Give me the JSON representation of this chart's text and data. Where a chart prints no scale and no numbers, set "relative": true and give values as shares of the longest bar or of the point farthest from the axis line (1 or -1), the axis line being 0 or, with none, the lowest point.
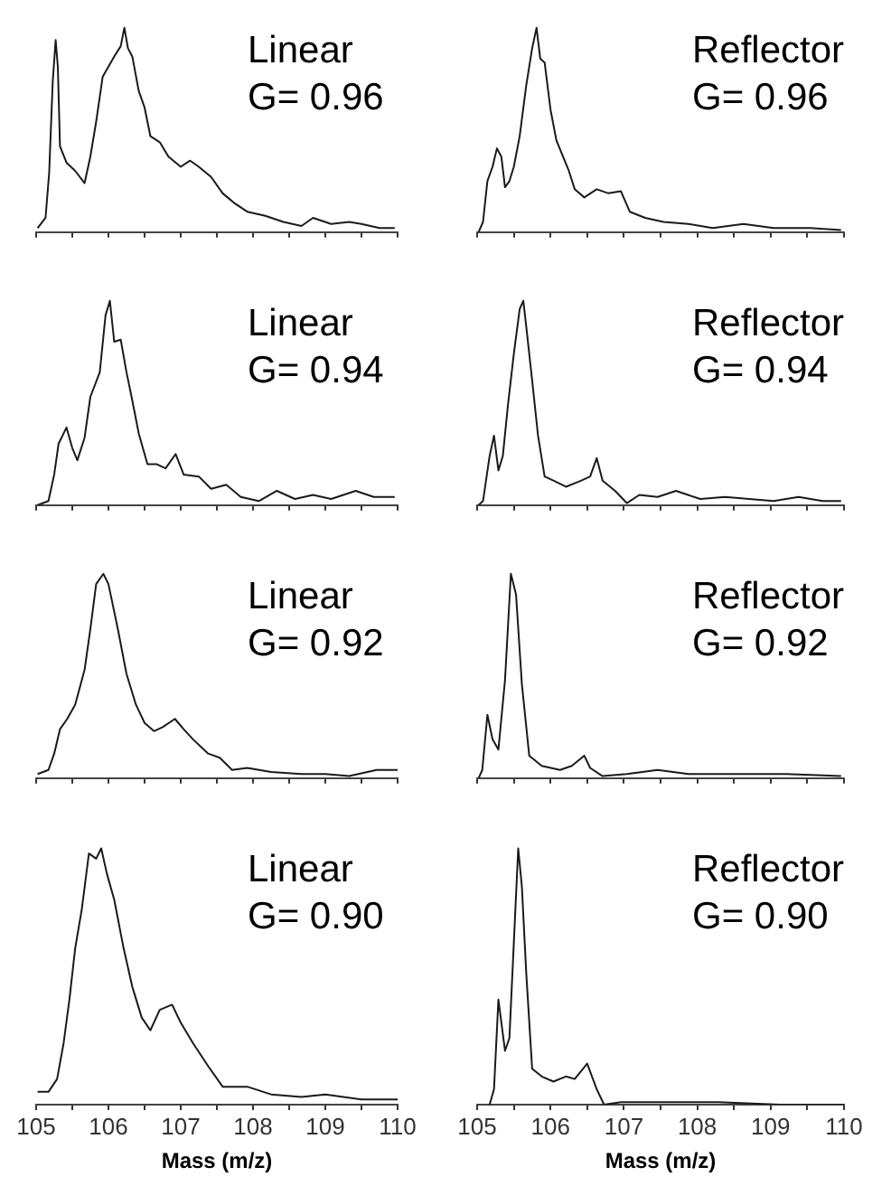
{
  "chart_data": [
    {
      "type": "line",
      "relative": true,
      "annotations": [
        "Linear",
        "G= 0.96"
      ],
      "tick_labels": false,
      "xlim": [
        105,
        110
      ],
      "xticks": [
        105,
        {
          "value": 105.5,
          "label": null
        },
        106,
        {
          "value": 106.5,
          "label": null
        },
        107,
        {
          "value": 107.5,
          "label": null
        },
        108,
        {
          "value": 108.5,
          "label": null
        },
        109,
        {
          "value": 109.5,
          "label": null
        },
        110
      ],
      "x": [
        105.02,
        105.13,
        105.18,
        105.23,
        105.27,
        105.3,
        105.33,
        105.42,
        105.54,
        105.67,
        105.75,
        105.83,
        105.92,
        106.0,
        106.08,
        106.17,
        106.22,
        106.27,
        106.33,
        106.42,
        106.5,
        106.58,
        106.71,
        106.83,
        107.0,
        107.13,
        107.25,
        107.42,
        107.58,
        107.75,
        107.92,
        108.17,
        108.42,
        108.67,
        108.83,
        109.08,
        109.33,
        109.5,
        109.75,
        109.96
      ],
      "series": [
        {
          "color": "#1a1a1a",
          "values": [
            0.02,
            0.07,
            0.29,
            0.74,
            0.94,
            0.81,
            0.42,
            0.34,
            0.3,
            0.24,
            0.37,
            0.54,
            0.76,
            0.81,
            0.86,
            0.91,
            1.0,
            0.9,
            0.86,
            0.69,
            0.61,
            0.47,
            0.44,
            0.37,
            0.32,
            0.35,
            0.32,
            0.27,
            0.19,
            0.14,
            0.1,
            0.08,
            0.05,
            0.03,
            0.07,
            0.04,
            0.05,
            0.04,
            0.02,
            0.02
          ]
        }
      ]
    },
    {
      "type": "line",
      "relative": true,
      "annotations": [
        "Reflector",
        "G= 0.96"
      ],
      "tick_labels": false,
      "xlim": [
        105,
        110
      ],
      "xticks": [
        105,
        {
          "value": 105.5,
          "label": null
        },
        106,
        {
          "value": 106.5,
          "label": null
        },
        107,
        {
          "value": 107.5,
          "label": null
        },
        108,
        {
          "value": 108.5,
          "label": null
        },
        109,
        {
          "value": 109.5,
          "label": null
        },
        110
      ],
      "x": [
        105.02,
        105.08,
        105.14,
        105.21,
        105.27,
        105.33,
        105.38,
        105.44,
        105.5,
        105.58,
        105.67,
        105.75,
        105.81,
        105.86,
        105.92,
        106.0,
        106.08,
        106.17,
        106.25,
        106.33,
        106.46,
        106.63,
        106.79,
        106.96,
        107.08,
        107.29,
        107.54,
        107.88,
        108.21,
        108.63,
        109.04,
        109.54,
        109.96
      ],
      "series": [
        {
          "color": "#1a1a1a",
          "values": [
            0,
            0.05,
            0.25,
            0.32,
            0.41,
            0.37,
            0.22,
            0.25,
            0.32,
            0.47,
            0.72,
            0.9,
            1.0,
            0.85,
            0.83,
            0.6,
            0.45,
            0.37,
            0.3,
            0.21,
            0.17,
            0.21,
            0.19,
            0.2,
            0.1,
            0.07,
            0.05,
            0.04,
            0.02,
            0.04,
            0.02,
            0.02,
            0.01
          ]
        }
      ]
    },
    {
      "type": "line",
      "relative": true,
      "annotations": [
        "Linear",
        "G= 0.94"
      ],
      "tick_labels": false,
      "xlim": [
        105,
        110
      ],
      "xticks": [
        105,
        {
          "value": 105.5,
          "label": null
        },
        106,
        {
          "value": 106.5,
          "label": null
        },
        107,
        {
          "value": 107.5,
          "label": null
        },
        108,
        {
          "value": 108.5,
          "label": null
        },
        109,
        {
          "value": 109.5,
          "label": null
        },
        110
      ],
      "x": [
        105.02,
        105.17,
        105.25,
        105.31,
        105.42,
        105.5,
        105.57,
        105.67,
        105.75,
        105.88,
        105.96,
        106.02,
        106.08,
        106.17,
        106.25,
        106.32,
        106.42,
        106.54,
        106.67,
        106.79,
        106.93,
        107.04,
        107.25,
        107.42,
        107.63,
        107.83,
        108.08,
        108.33,
        108.58,
        108.83,
        109.08,
        109.42,
        109.67,
        109.96
      ],
      "series": [
        {
          "color": "#1a1a1a",
          "values": [
            0,
            0.02,
            0.15,
            0.3,
            0.38,
            0.28,
            0.22,
            0.33,
            0.53,
            0.65,
            0.93,
            1.0,
            0.8,
            0.81,
            0.65,
            0.53,
            0.35,
            0.2,
            0.2,
            0.18,
            0.25,
            0.15,
            0.14,
            0.08,
            0.1,
            0.04,
            0.02,
            0.07,
            0.03,
            0.05,
            0.03,
            0.07,
            0.04,
            0.04
          ]
        }
      ]
    },
    {
      "type": "line",
      "relative": true,
      "annotations": [
        "Reflector",
        "G= 0.94"
      ],
      "tick_labels": false,
      "xlim": [
        105,
        110
      ],
      "xticks": [
        105,
        {
          "value": 105.5,
          "label": null
        },
        106,
        {
          "value": 106.5,
          "label": null
        },
        107,
        {
          "value": 107.5,
          "label": null
        },
        108,
        {
          "value": 108.5,
          "label": null
        },
        109,
        {
          "value": 109.5,
          "label": null
        },
        110
      ],
      "x": [
        105.02,
        105.08,
        105.17,
        105.23,
        105.29,
        105.35,
        105.42,
        105.5,
        105.58,
        105.63,
        105.68,
        105.75,
        105.83,
        105.92,
        106.04,
        106.21,
        106.42,
        106.54,
        106.63,
        106.71,
        106.88,
        107.04,
        107.21,
        107.46,
        107.71,
        108.04,
        108.38,
        108.71,
        109.04,
        109.38,
        109.71,
        109.96
      ],
      "series": [
        {
          "color": "#1a1a1a",
          "values": [
            0,
            0.02,
            0.24,
            0.34,
            0.17,
            0.24,
            0.49,
            0.74,
            0.96,
            1.0,
            0.84,
            0.61,
            0.34,
            0.14,
            0.12,
            0.09,
            0.12,
            0.14,
            0.23,
            0.12,
            0.07,
            0.01,
            0.05,
            0.04,
            0.07,
            0.03,
            0.04,
            0.03,
            0.02,
            0.04,
            0.02,
            0.02
          ]
        }
      ]
    },
    {
      "type": "line",
      "relative": true,
      "annotations": [
        "Linear",
        "G= 0.92"
      ],
      "tick_labels": false,
      "xlim": [
        105,
        110
      ],
      "xticks": [
        105,
        {
          "value": 105.5,
          "label": null
        },
        106,
        {
          "value": 106.5,
          "label": null
        },
        107,
        {
          "value": 107.5,
          "label": null
        },
        108,
        {
          "value": 108.5,
          "label": null
        },
        109,
        {
          "value": 109.5,
          "label": null
        },
        110
      ],
      "x": [
        105.02,
        105.17,
        105.25,
        105.33,
        105.43,
        105.54,
        105.67,
        105.75,
        105.83,
        105.93,
        106.0,
        106.13,
        106.25,
        106.38,
        106.5,
        106.63,
        106.75,
        106.92,
        107.04,
        107.17,
        107.38,
        107.54,
        107.71,
        107.92,
        108.25,
        108.67,
        109.0,
        109.33,
        109.71,
        110.0
      ],
      "series": [
        {
          "color": "#1a1a1a",
          "values": [
            0.02,
            0.04,
            0.12,
            0.24,
            0.29,
            0.36,
            0.53,
            0.73,
            0.95,
            1.0,
            0.95,
            0.73,
            0.51,
            0.36,
            0.27,
            0.23,
            0.25,
            0.29,
            0.24,
            0.19,
            0.12,
            0.1,
            0.04,
            0.05,
            0.03,
            0.02,
            0.02,
            0.01,
            0.04,
            0.04
          ]
        }
      ]
    },
    {
      "type": "line",
      "relative": true,
      "annotations": [
        "Reflector",
        "G= 0.92"
      ],
      "tick_labels": false,
      "xlim": [
        105,
        110
      ],
      "xticks": [
        105,
        {
          "value": 105.5,
          "label": null
        },
        106,
        {
          "value": 106.5,
          "label": null
        },
        107,
        {
          "value": 107.5,
          "label": null
        },
        108,
        {
          "value": 108.5,
          "label": null
        },
        109,
        {
          "value": 109.5,
          "label": null
        },
        110
      ],
      "x": [
        105.02,
        105.07,
        105.14,
        105.21,
        105.29,
        105.38,
        105.46,
        105.53,
        105.61,
        105.71,
        105.88,
        106.13,
        106.29,
        106.46,
        106.54,
        106.71,
        107.04,
        107.46,
        107.88,
        108.29,
        108.71,
        109.21,
        109.96
      ],
      "series": [
        {
          "color": "#1a1a1a",
          "values": [
            0,
            0.04,
            0.31,
            0.19,
            0.14,
            0.48,
            1.0,
            0.9,
            0.46,
            0.11,
            0.06,
            0.04,
            0.06,
            0.11,
            0.05,
            0.01,
            0.02,
            0.04,
            0.02,
            0.02,
            0.02,
            0.02,
            0.01
          ]
        }
      ]
    },
    {
      "type": "line",
      "relative": true,
      "annotations": [
        "Linear",
        "G= 0.90"
      ],
      "xlabel": "Mass (m/z)",
      "tick_labels": "x",
      "xlim": [
        105,
        110
      ],
      "xticks": [
        105,
        {
          "value": 105.5,
          "label": null
        },
        106,
        {
          "value": 106.5,
          "label": null
        },
        107,
        {
          "value": 107.5,
          "label": null
        },
        108,
        {
          "value": 108.5,
          "label": null
        },
        109,
        {
          "value": 109.5,
          "label": null
        },
        110
      ],
      "x": [
        105.02,
        105.17,
        105.29,
        105.38,
        105.46,
        105.54,
        105.63,
        105.73,
        105.83,
        105.9,
        105.98,
        106.08,
        106.21,
        106.33,
        106.46,
        106.58,
        106.71,
        106.88,
        107.0,
        107.17,
        107.38,
        107.58,
        107.92,
        108.25,
        108.67,
        109.0,
        109.5,
        110.0
      ],
      "series": [
        {
          "color": "#1a1a1a",
          "values": [
            0.05,
            0.05,
            0.1,
            0.24,
            0.41,
            0.61,
            0.76,
            0.98,
            0.96,
            1.0,
            0.9,
            0.8,
            0.61,
            0.46,
            0.34,
            0.29,
            0.37,
            0.39,
            0.32,
            0.24,
            0.15,
            0.07,
            0.07,
            0.04,
            0.03,
            0.04,
            0.02,
            0.02
          ]
        }
      ]
    },
    {
      "type": "line",
      "relative": true,
      "annotations": [
        "Reflector",
        "G= 0.90"
      ],
      "xlabel": "Mass (m/z)",
      "tick_labels": "x",
      "xlim": [
        105,
        110
      ],
      "xticks": [
        105,
        {
          "value": 105.5,
          "label": null
        },
        106,
        {
          "value": 106.5,
          "label": null
        },
        107,
        {
          "value": 107.5,
          "label": null
        },
        108,
        {
          "value": 108.5,
          "label": null
        },
        109,
        {
          "value": 109.5,
          "label": null
        },
        110
      ],
      "x": [
        105.17,
        105.23,
        105.29,
        105.38,
        105.44,
        105.5,
        105.56,
        105.61,
        105.67,
        105.75,
        105.88,
        106.04,
        106.21,
        106.33,
        106.5,
        106.63,
        106.73,
        106.96,
        107.46,
        108.29,
        109.13,
        110.0
      ],
      "series": [
        {
          "color": "#1a1a1a",
          "values": [
            0,
            0.06,
            0.41,
            0.21,
            0.26,
            0.63,
            1.0,
            0.85,
            0.51,
            0.14,
            0.11,
            0.09,
            0.11,
            0.1,
            0.16,
            0.06,
            0,
            0.01,
            0.01,
            0.01,
            0,
            0
          ]
        }
      ]
    }
  ]
}
